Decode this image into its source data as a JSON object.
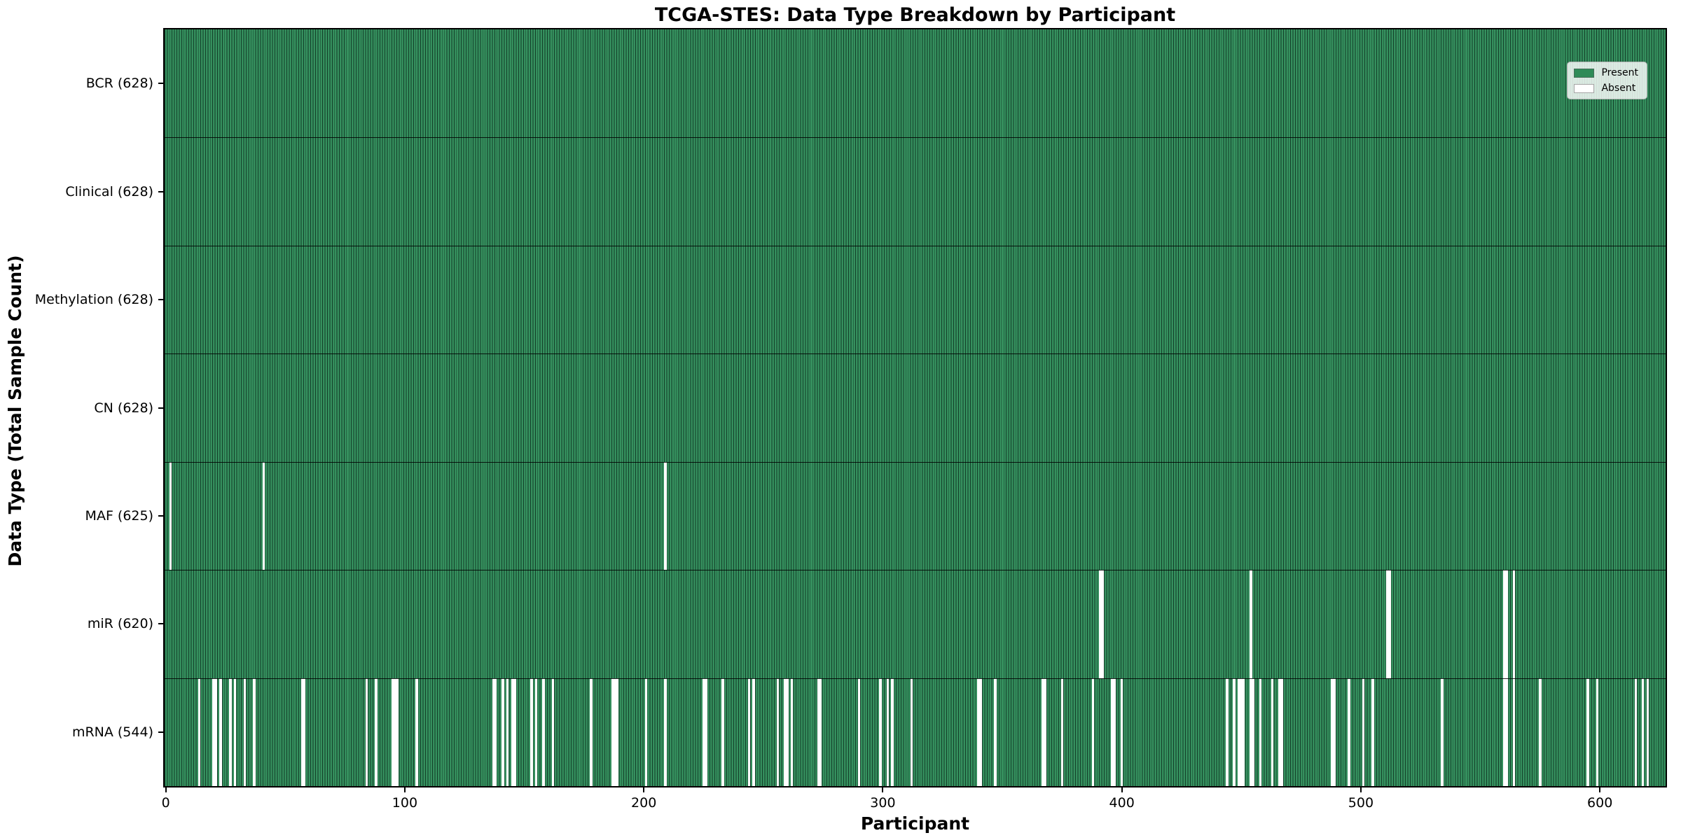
{
  "figure": {
    "title": "TCGA-STES: Data Type Breakdown by Participant",
    "xlabel": "Participant",
    "ylabel": "Data Type (Total Sample Count)"
  },
  "chart_data": {
    "type": "heatmap",
    "subtype": "presence-absence-matrix",
    "title": "TCGA-STES: Data Type Breakdown by Participant",
    "xlabel": "Participant",
    "ylabel": "Data Type (Total Sample Count)",
    "x_ticks": [
      0,
      100,
      200,
      300,
      400,
      500,
      600
    ],
    "x_range": [
      0,
      628
    ],
    "n_participants": 628,
    "present_color": "#2e8b57",
    "absent_color": "#ffffff",
    "grid": false,
    "legend_position": "upper right",
    "legend": [
      {
        "label": "Present",
        "color": "#2e8b57"
      },
      {
        "label": "Absent",
        "color": "#ffffff"
      }
    ],
    "rows": [
      {
        "label": "BCR (628)",
        "data_type": "BCR",
        "present_count": 628,
        "absent_participants": []
      },
      {
        "label": "Clinical (628)",
        "data_type": "Clinical",
        "present_count": 628,
        "absent_participants": []
      },
      {
        "label": "Methylation (628)",
        "data_type": "Methylation",
        "present_count": 628,
        "absent_participants": []
      },
      {
        "label": "CN (628)",
        "data_type": "CN",
        "present_count": 628,
        "absent_participants": []
      },
      {
        "label": "MAF (625)",
        "data_type": "MAF",
        "present_count": 625,
        "absent_participants": [
          2,
          41,
          209
        ]
      },
      {
        "label": "miR (620)",
        "data_type": "miR",
        "present_count": 620,
        "absent_participants": [
          391,
          392,
          454,
          511,
          512,
          560,
          561,
          564
        ]
      },
      {
        "label": "mRNA (544)",
        "data_type": "mRNA",
        "present_count": 544,
        "absent_participants": [
          14,
          20,
          21,
          23,
          27,
          29,
          33,
          37,
          57,
          58,
          84,
          88,
          95,
          96,
          97,
          105,
          137,
          138,
          141,
          143,
          145,
          146,
          153,
          155,
          158,
          162,
          178,
          187,
          188,
          189,
          201,
          209,
          225,
          226,
          233,
          244,
          246,
          256,
          259,
          260,
          262,
          273,
          274,
          290,
          299,
          302,
          304,
          312,
          340,
          341,
          347,
          367,
          368,
          375,
          388,
          396,
          397,
          400,
          444,
          447,
          449,
          450,
          451,
          454,
          455,
          458,
          463,
          466,
          467,
          488,
          489,
          495,
          501,
          505,
          534,
          560,
          561,
          564,
          575,
          595,
          599,
          615,
          618,
          620
        ]
      }
    ]
  }
}
